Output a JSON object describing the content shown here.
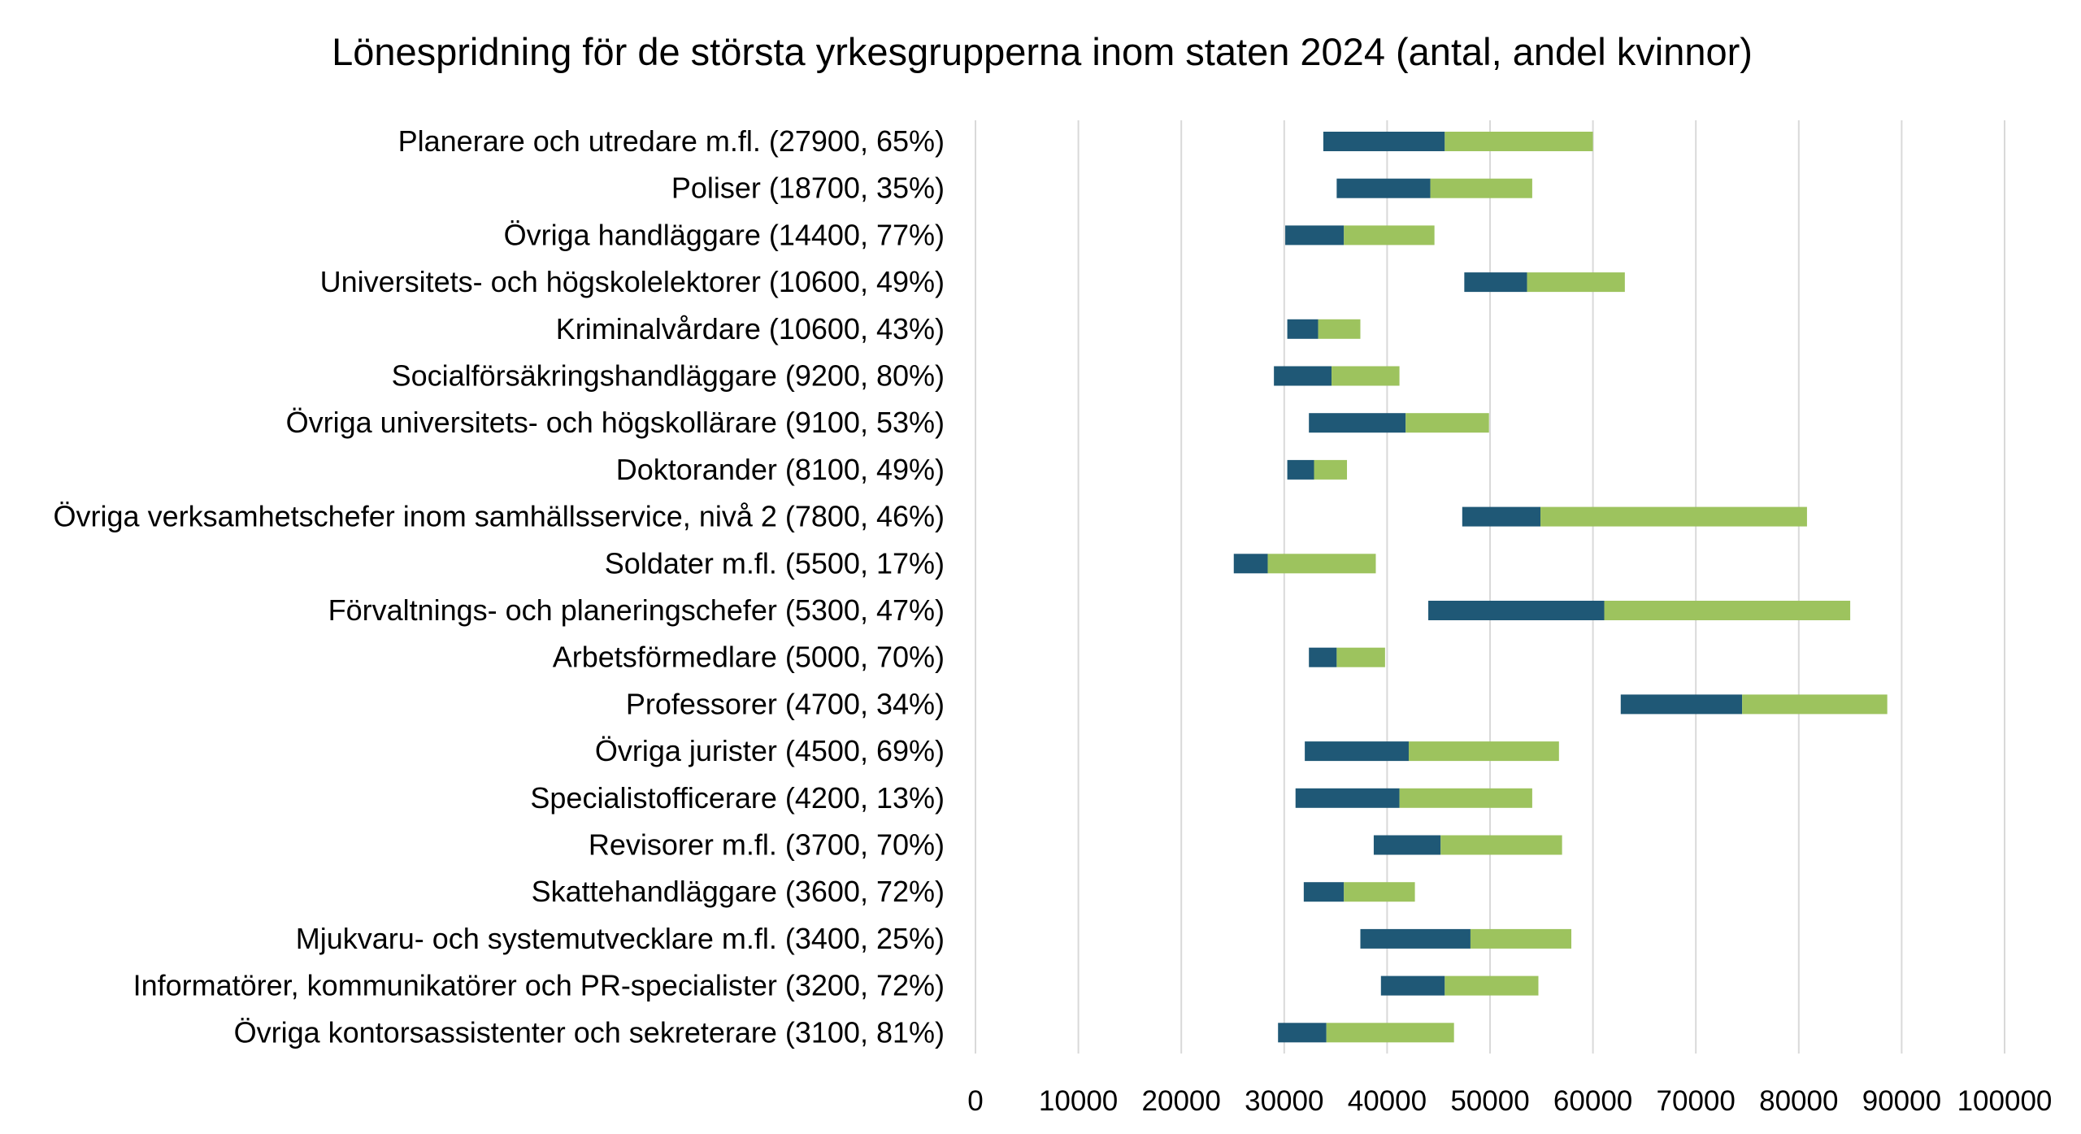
{
  "chart_data": {
    "type": "bar",
    "orientation": "horizontal-stacked-floating",
    "title": "Lönespridning för de största yrkesgrupperna inom staten 2024 (antal, andel kvinnor)",
    "xlabel": "",
    "ylabel": "",
    "xlim": [
      0,
      100000
    ],
    "xticks": [
      "0",
      "10000",
      "20000",
      "30000",
      "40000",
      "50000",
      "60000",
      "70000",
      "80000",
      "90000",
      "100000"
    ],
    "grid": true,
    "legend": "none",
    "colors": {
      "lower": "#1f5876",
      "upper": "#9dc35e",
      "grid": "#d9d9d9"
    },
    "series_note": "each bar spans start → mid (dark) and mid → end (green)",
    "categories": [
      "Planerare och utredare m.fl. (27900, 65%)",
      "Poliser (18700, 35%)",
      "Övriga handläggare (14400, 77%)",
      "Universitets- och högskolelektorer (10600, 49%)",
      "Kriminalvårdare (10600, 43%)",
      "Socialförsäkringshandläggare (9200, 80%)",
      "Övriga universitets- och högskollärare (9100, 53%)",
      "Doktorander (8100, 49%)",
      "Övriga verksamhetschefer inom samhällsservice, nivå 2 (7800, 46%)",
      "Soldater m.fl. (5500, 17%)",
      "Förvaltnings- och planeringschefer (5300, 47%)",
      "Arbetsförmedlare (5000, 70%)",
      "Professorer (4700, 34%)",
      "Övriga jurister (4500, 69%)",
      "Specialistofficerare (4200, 13%)",
      "Revisorer m.fl. (3700, 70%)",
      "Skattehandläggare (3600, 72%)",
      "Mjukvaru- och systemutvecklare m.fl. (3400, 25%)",
      "Informatörer, kommunikatörer och PR-specialister (3200, 72%)",
      "Övriga kontorsassistenter och sekreterare (3100, 81%)"
    ],
    "start": [
      33800,
      35100,
      30100,
      47500,
      30300,
      29000,
      32400,
      30300,
      47300,
      25100,
      44000,
      32400,
      62700,
      32000,
      31100,
      38700,
      31900,
      37400,
      39400,
      29400
    ],
    "mid": [
      45600,
      44200,
      35800,
      53600,
      33300,
      34600,
      41800,
      32900,
      54900,
      28400,
      61100,
      35100,
      74500,
      42100,
      41200,
      45200,
      35800,
      48100,
      45600,
      34100
    ],
    "end": [
      60000,
      54100,
      44600,
      63100,
      37400,
      41200,
      49900,
      36100,
      80800,
      38900,
      85000,
      39800,
      88600,
      56700,
      54100,
      57000,
      42700,
      57900,
      54700,
      46500
    ]
  }
}
